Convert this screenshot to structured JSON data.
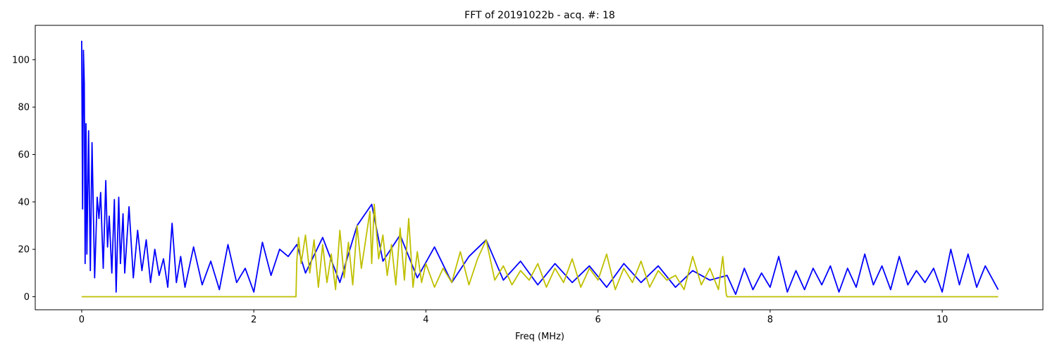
{
  "chart_data": {
    "type": "line",
    "title": "FFT of 20191022b - acq. #: 18",
    "xlabel": "Freq (MHz)",
    "ylabel": "",
    "xlim": [
      -0.54,
      11.17
    ],
    "ylim": [
      -5.5,
      114.5
    ],
    "xticks": [
      0,
      2,
      4,
      6,
      8,
      10
    ],
    "yticks": [
      0,
      20,
      40,
      60,
      80,
      100
    ],
    "grid": false,
    "series": [
      {
        "color": "#0000ff",
        "x": [
          0.0,
          0.01,
          0.02,
          0.03,
          0.04,
          0.05,
          0.06,
          0.08,
          0.1,
          0.12,
          0.15,
          0.18,
          0.2,
          0.22,
          0.25,
          0.28,
          0.3,
          0.32,
          0.35,
          0.38,
          0.4,
          0.43,
          0.45,
          0.48,
          0.5,
          0.55,
          0.6,
          0.65,
          0.7,
          0.75,
          0.8,
          0.85,
          0.9,
          0.95,
          1.0,
          1.05,
          1.1,
          1.15,
          1.2,
          1.3,
          1.4,
          1.5,
          1.6,
          1.7,
          1.8,
          1.9,
          2.0,
          2.1,
          2.2,
          2.3,
          2.4,
          2.5,
          2.6,
          2.8,
          3.0,
          3.2,
          3.37,
          3.5,
          3.7,
          3.9,
          4.1,
          4.3,
          4.5,
          4.7,
          4.9,
          5.1,
          5.3,
          5.5,
          5.7,
          5.9,
          6.1,
          6.3,
          6.5,
          6.7,
          6.9,
          7.1,
          7.3,
          7.5,
          7.6,
          7.7,
          7.8,
          7.9,
          8.0,
          8.1,
          8.2,
          8.3,
          8.4,
          8.5,
          8.6,
          8.7,
          8.8,
          8.9,
          9.0,
          9.1,
          9.2,
          9.3,
          9.4,
          9.5,
          9.6,
          9.7,
          9.8,
          9.9,
          10.0,
          10.1,
          10.2,
          10.3,
          10.4,
          10.5,
          10.65
        ],
        "y": [
          108,
          37,
          104,
          90,
          14,
          73,
          18,
          70,
          11,
          65,
          8,
          42,
          33,
          44,
          12,
          49,
          21,
          34,
          10,
          41,
          2,
          42,
          14,
          35,
          10,
          38,
          8,
          28,
          11,
          24,
          6,
          20,
          9,
          16,
          4,
          31,
          6,
          17,
          4,
          21,
          5,
          15,
          3,
          22,
          6,
          12,
          2,
          23,
          9,
          20,
          17,
          22,
          10,
          25,
          6,
          30,
          39,
          15,
          26,
          8,
          21,
          6,
          17,
          24,
          7,
          15,
          5,
          14,
          6,
          13,
          4,
          14,
          6,
          13,
          4,
          11,
          7,
          9,
          1,
          12,
          3,
          10,
          4,
          17,
          2,
          11,
          3,
          12,
          5,
          13,
          2,
          12,
          4,
          18,
          5,
          13,
          3,
          17,
          5,
          11,
          6,
          12,
          2,
          20,
          5,
          18,
          4,
          13,
          3
        ]
      },
      {
        "color": "#bfbf00",
        "x": [
          0.0,
          2.49,
          2.5,
          2.52,
          2.55,
          2.6,
          2.65,
          2.7,
          2.75,
          2.8,
          2.85,
          2.9,
          2.95,
          3.0,
          3.05,
          3.1,
          3.15,
          3.2,
          3.25,
          3.3,
          3.35,
          3.37,
          3.4,
          3.45,
          3.5,
          3.55,
          3.6,
          3.65,
          3.7,
          3.75,
          3.8,
          3.85,
          3.9,
          3.95,
          4.0,
          4.1,
          4.2,
          4.3,
          4.4,
          4.5,
          4.6,
          4.7,
          4.8,
          4.9,
          5.0,
          5.1,
          5.2,
          5.3,
          5.4,
          5.5,
          5.6,
          5.7,
          5.8,
          5.9,
          6.0,
          6.1,
          6.2,
          6.3,
          6.4,
          6.5,
          6.6,
          6.7,
          6.8,
          6.9,
          7.0,
          7.1,
          7.2,
          7.3,
          7.4,
          7.45,
          7.49,
          7.5,
          10.65
        ],
        "y": [
          0,
          0,
          15,
          25,
          14,
          26,
          10,
          24,
          4,
          22,
          6,
          18,
          3,
          28,
          8,
          23,
          5,
          30,
          12,
          24,
          36,
          14,
          39,
          16,
          26,
          9,
          22,
          5,
          29,
          7,
          33,
          4,
          19,
          6,
          14,
          4,
          12,
          6,
          19,
          5,
          16,
          24,
          7,
          13,
          5,
          11,
          7,
          14,
          4,
          12,
          6,
          16,
          4,
          12,
          7,
          18,
          3,
          12,
          6,
          15,
          4,
          11,
          7,
          9,
          3,
          17,
          5,
          12,
          3,
          17,
          1,
          0,
          0
        ]
      }
    ]
  }
}
